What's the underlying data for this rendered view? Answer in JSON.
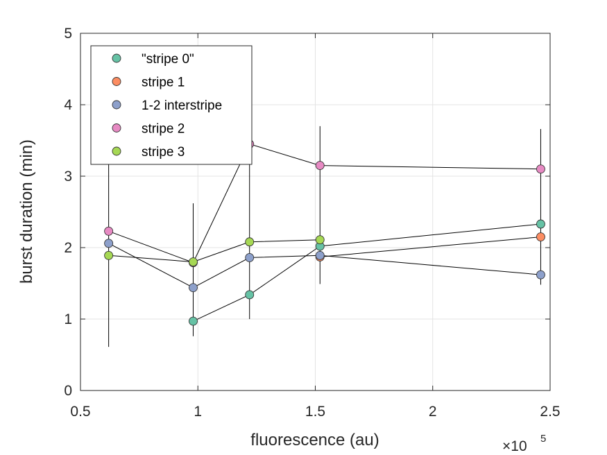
{
  "chart_data": {
    "type": "scatter",
    "title": "",
    "xlabel": "fluorescence (au)",
    "ylabel": "burst duration (min)",
    "x_exponent": {
      "base": "×10",
      "power": "5"
    },
    "xlim": [
      0.5,
      2.5
    ],
    "ylim": [
      0,
      5
    ],
    "xticks": [
      0.5,
      1,
      1.5,
      2,
      2.5
    ],
    "xtick_labels": [
      "0.5",
      "1",
      "1.5",
      "2",
      "2.5"
    ],
    "yticks": [
      0,
      1,
      2,
      3,
      4,
      5
    ],
    "ytick_labels": [
      "0",
      "1",
      "2",
      "3",
      "4",
      "5"
    ],
    "grid": true,
    "legend_position": "top-left",
    "series": [
      {
        "name": "\"stripe 0\"",
        "color": "#66c2a5",
        "points": [
          {
            "x": 0.98,
            "y": 0.97
          },
          {
            "x": 1.22,
            "y": 1.34
          },
          {
            "x": 1.52,
            "y": 2.02
          },
          {
            "x": 2.46,
            "y": 2.33
          }
        ]
      },
      {
        "name": "stripe 1",
        "color": "#fc8d62",
        "points": [
          {
            "x": 1.52,
            "y": 1.87
          },
          {
            "x": 2.46,
            "y": 2.15
          }
        ]
      },
      {
        "name": "1-2 interstripe",
        "color": "#8da0cb",
        "points": [
          {
            "x": 0.62,
            "y": 2.06
          },
          {
            "x": 0.98,
            "y": 1.44
          },
          {
            "x": 1.22,
            "y": 1.86
          },
          {
            "x": 1.52,
            "y": 1.89
          },
          {
            "x": 2.46,
            "y": 1.62
          }
        ]
      },
      {
        "name": "stripe 2",
        "color": "#e78ac3",
        "points": [
          {
            "x": 0.62,
            "y": 2.23
          },
          {
            "x": 0.98,
            "y": 1.79
          },
          {
            "x": 1.22,
            "y": 3.45
          },
          {
            "x": 1.52,
            "y": 3.15
          },
          {
            "x": 2.46,
            "y": 3.1
          }
        ]
      },
      {
        "name": "stripe 3",
        "color": "#a6d854",
        "points": [
          {
            "x": 0.62,
            "y": 1.89
          },
          {
            "x": 0.98,
            "y": 1.8
          },
          {
            "x": 1.22,
            "y": 2.08
          },
          {
            "x": 1.52,
            "y": 2.11
          }
        ]
      }
    ],
    "error_bars": [
      {
        "x": 0.62,
        "low": 0.61,
        "high": 3.4
      },
      {
        "x": 0.98,
        "low": 0.76,
        "high": 2.62
      },
      {
        "x": 1.22,
        "low": 1.0,
        "high": 3.45
      },
      {
        "x": 1.52,
        "low": 1.49,
        "high": 3.7
      },
      {
        "x": 2.46,
        "low": 1.48,
        "high": 3.66
      }
    ]
  }
}
